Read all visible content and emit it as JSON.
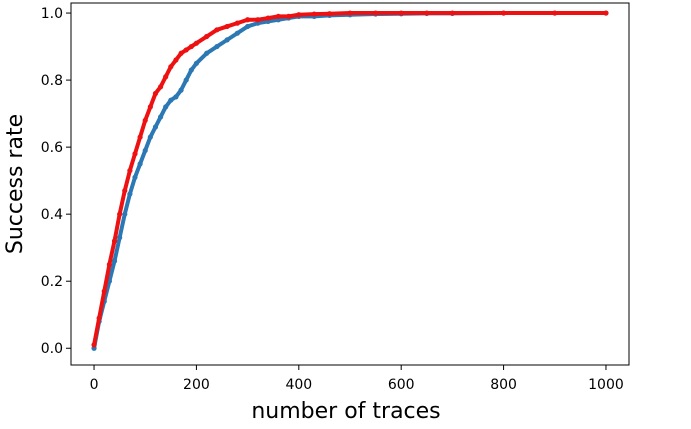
{
  "chart_data": {
    "type": "scatter",
    "title": "",
    "xlabel": "number of traces",
    "ylabel": "Success rate",
    "xlim": [
      -45,
      1045
    ],
    "ylim": [
      -0.05,
      1.03
    ],
    "xticks": [
      0,
      200,
      400,
      600,
      800,
      1000
    ],
    "xtick_labels": [
      "0",
      "200",
      "400",
      "600",
      "800",
      "1000"
    ],
    "yticks": [
      0.0,
      0.2,
      0.4,
      0.6,
      0.8,
      1.0
    ],
    "ytick_labels": [
      "0.0",
      "0.2",
      "0.4",
      "0.6",
      "0.8",
      "1.0"
    ],
    "grid": false,
    "legend": "none",
    "series": [
      {
        "color": "#ee1111",
        "x": [
          0,
          10,
          20,
          30,
          40,
          50,
          60,
          70,
          80,
          90,
          100,
          110,
          120,
          130,
          140,
          150,
          160,
          170,
          180,
          190,
          200,
          220,
          240,
          260,
          280,
          300,
          320,
          340,
          360,
          380,
          400,
          430,
          460,
          500,
          550,
          600,
          650,
          700,
          800,
          900,
          1000
        ],
        "y": [
          0.01,
          0.09,
          0.17,
          0.25,
          0.32,
          0.4,
          0.47,
          0.53,
          0.58,
          0.63,
          0.68,
          0.72,
          0.76,
          0.78,
          0.81,
          0.84,
          0.86,
          0.88,
          0.89,
          0.9,
          0.91,
          0.93,
          0.95,
          0.96,
          0.97,
          0.98,
          0.98,
          0.985,
          0.99,
          0.99,
          0.995,
          0.997,
          0.998,
          1.0,
          1.0,
          1.0,
          1.0,
          1.0,
          1.0,
          1.0,
          1.0
        ]
      },
      {
        "color": "#2b78b5",
        "x": [
          0,
          10,
          20,
          30,
          40,
          50,
          60,
          70,
          80,
          90,
          100,
          110,
          120,
          130,
          140,
          150,
          160,
          170,
          180,
          190,
          200,
          220,
          240,
          260,
          280,
          300,
          320,
          340,
          360,
          380,
          400,
          430,
          460,
          500,
          550,
          600,
          650,
          700,
          800,
          900,
          1000
        ],
        "y": [
          0.0,
          0.08,
          0.14,
          0.2,
          0.26,
          0.33,
          0.4,
          0.46,
          0.51,
          0.55,
          0.59,
          0.63,
          0.66,
          0.69,
          0.72,
          0.74,
          0.75,
          0.77,
          0.8,
          0.83,
          0.85,
          0.88,
          0.9,
          0.92,
          0.94,
          0.96,
          0.97,
          0.975,
          0.98,
          0.985,
          0.99,
          0.99,
          0.993,
          0.995,
          0.997,
          0.998,
          0.999,
          0.999,
          1.0,
          1.0,
          1.0
        ]
      }
    ]
  }
}
